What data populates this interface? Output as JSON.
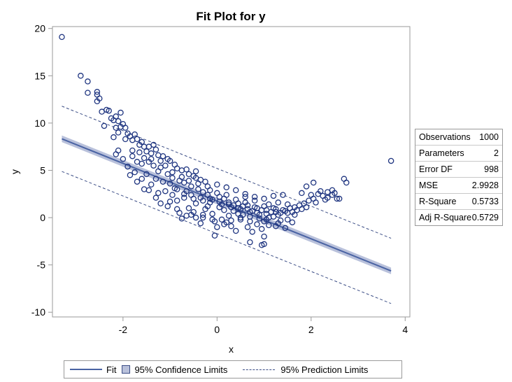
{
  "chart_data": {
    "type": "scatter",
    "title": "Fit Plot for y",
    "xlabel": "x",
    "ylabel": "y",
    "xlim": [
      -3.5,
      4.1
    ],
    "ylim": [
      -10.5,
      20.2
    ],
    "xticks": [
      "-2",
      "0",
      "2",
      "4"
    ],
    "yticks": [
      "-10",
      "-5",
      "0",
      "5",
      "10",
      "15",
      "20"
    ],
    "grid": false,
    "legend_position": "bottom",
    "fit": {
      "slope": -1.995,
      "intercept": 1.75,
      "x_range": [
        -3.3,
        3.7
      ]
    },
    "confidence_halfwidth": 0.35,
    "prediction_halfwidth": 3.45,
    "colors": {
      "points": "#1f3580",
      "fit": "#4a63a3",
      "band": "#b9c1db",
      "pred": "#3c4e86"
    },
    "legend": {
      "fit": "Fit",
      "confidence": "95% Confidence Limits",
      "prediction": "95% Prediction Limits"
    },
    "stats": [
      {
        "label": "Observations",
        "value": "1000"
      },
      {
        "label": "Parameters",
        "value": "2"
      },
      {
        "label": "Error DF",
        "value": "998"
      },
      {
        "label": "MSE",
        "value": "2.9928"
      },
      {
        "label": "R-Square",
        "value": "0.5733"
      },
      {
        "label": "Adj R-Square",
        "value": "0.5729"
      }
    ],
    "points": [
      [
        -3.3,
        19.1
      ],
      [
        -2.9,
        15.0
      ],
      [
        -2.75,
        14.4
      ],
      [
        -2.75,
        13.2
      ],
      [
        -2.55,
        13.3
      ],
      [
        -2.55,
        13.0
      ],
      [
        -2.5,
        12.6
      ],
      [
        -2.55,
        12.3
      ],
      [
        -2.45,
        11.2
      ],
      [
        -2.35,
        11.4
      ],
      [
        -2.3,
        11.3
      ],
      [
        -2.25,
        10.5
      ],
      [
        -2.15,
        10.7
      ],
      [
        -2.05,
        11.1
      ],
      [
        -2.2,
        10.3
      ],
      [
        -2.1,
        10.2
      ],
      [
        -2.0,
        9.9
      ],
      [
        -2.4,
        9.7
      ],
      [
        -2.15,
        9.5
      ],
      [
        -2.05,
        9.6
      ],
      [
        -1.95,
        9.5
      ],
      [
        -2.1,
        9.0
      ],
      [
        -1.9,
        8.9
      ],
      [
        -1.85,
        8.6
      ],
      [
        -1.75,
        8.8
      ],
      [
        -2.2,
        8.5
      ],
      [
        -1.8,
        8.2
      ],
      [
        -1.7,
        8.3
      ],
      [
        -1.6,
        8.0
      ],
      [
        -1.65,
        7.7
      ],
      [
        -1.55,
        7.5
      ],
      [
        -1.45,
        7.5
      ],
      [
        -1.35,
        7.7
      ],
      [
        -1.5,
        7.0
      ],
      [
        -1.4,
        6.8
      ],
      [
        -1.3,
        7.2
      ],
      [
        -1.25,
        6.6
      ],
      [
        -1.15,
        6.5
      ],
      [
        -1.05,
        6.2
      ],
      [
        -1.2,
        6.0
      ],
      [
        -1.0,
        6.0
      ],
      [
        -1.1,
        5.5
      ],
      [
        -0.9,
        5.6
      ],
      [
        -0.85,
        5.2
      ],
      [
        -0.75,
        5.0
      ],
      [
        -0.65,
        5.1
      ],
      [
        -0.6,
        4.6
      ],
      [
        -0.5,
        4.4
      ],
      [
        -0.45,
        4.2
      ],
      [
        -0.35,
        4.0
      ],
      [
        -0.25,
        3.8
      ],
      [
        -1.8,
        7.1
      ],
      [
        -1.95,
        8.3
      ],
      [
        -1.55,
        6.3
      ],
      [
        -1.45,
        5.9
      ],
      [
        -1.7,
        5.9
      ],
      [
        -1.35,
        5.5
      ],
      [
        -1.6,
        5.7
      ],
      [
        -1.25,
        4.9
      ],
      [
        -1.05,
        4.6
      ],
      [
        -0.95,
        4.2
      ],
      [
        -0.8,
        3.9
      ],
      [
        -0.7,
        3.7
      ],
      [
        -0.55,
        3.3
      ],
      [
        -1.0,
        3.6
      ],
      [
        -0.85,
        3.0
      ],
      [
        -0.65,
        2.8
      ],
      [
        -0.4,
        3.0
      ],
      [
        -0.3,
        2.7
      ],
      [
        -0.15,
        2.9
      ],
      [
        -1.15,
        3.8
      ],
      [
        -1.3,
        4.1
      ],
      [
        -1.5,
        4.6
      ],
      [
        -0.95,
        2.4
      ],
      [
        -0.7,
        2.1
      ],
      [
        -0.5,
        2.0
      ],
      [
        -0.3,
        1.8
      ],
      [
        -0.1,
        1.9
      ],
      [
        0.05,
        2.2
      ],
      [
        0.15,
        2.0
      ],
      [
        0.25,
        1.6
      ],
      [
        0.35,
        1.3
      ],
      [
        0.45,
        1.0
      ],
      [
        0.55,
        1.2
      ],
      [
        0.65,
        0.9
      ],
      [
        0.75,
        0.7
      ],
      [
        0.85,
        0.5
      ],
      [
        0.95,
        0.8
      ],
      [
        1.05,
        0.4
      ],
      [
        1.15,
        0.6
      ],
      [
        1.25,
        0.9
      ],
      [
        1.35,
        0.5
      ],
      [
        1.45,
        0.7
      ],
      [
        1.55,
        1.0
      ],
      [
        1.65,
        1.1
      ],
      [
        1.75,
        1.3
      ],
      [
        1.85,
        1.5
      ],
      [
        1.95,
        1.8
      ],
      [
        2.05,
        2.0
      ],
      [
        2.15,
        2.5
      ],
      [
        2.25,
        2.3
      ],
      [
        2.35,
        2.1
      ],
      [
        2.45,
        2.4
      ],
      [
        2.55,
        2.0
      ],
      [
        2.6,
        2.0
      ],
      [
        2.7,
        4.1
      ],
      [
        2.75,
        3.7
      ],
      [
        2.05,
        3.7
      ],
      [
        1.9,
        3.3
      ],
      [
        2.2,
        2.8
      ],
      [
        2.35,
        2.7
      ],
      [
        2.45,
        2.9
      ],
      [
        2.5,
        2.6
      ],
      [
        2.0,
        2.4
      ],
      [
        1.8,
        2.6
      ],
      [
        3.7,
        6.0
      ],
      [
        1.4,
        2.4
      ],
      [
        1.2,
        2.3
      ],
      [
        1.0,
        2.0
      ],
      [
        0.8,
        2.2
      ],
      [
        0.6,
        2.5
      ],
      [
        0.4,
        2.9
      ],
      [
        0.2,
        3.2
      ],
      [
        0.0,
        3.5
      ],
      [
        -0.2,
        3.3
      ],
      [
        -0.45,
        4.9
      ],
      [
        0.6,
        2.2
      ],
      [
        1.0,
        -0.4
      ],
      [
        0.5,
        -0.2
      ],
      [
        0.2,
        -0.5
      ],
      [
        -0.05,
        -0.4
      ],
      [
        -0.3,
        0.0
      ],
      [
        -0.55,
        0.3
      ],
      [
        -0.8,
        0.5
      ],
      [
        -1.05,
        1.2
      ],
      [
        -1.3,
        2.1
      ],
      [
        -1.55,
        3.0
      ],
      [
        0.0,
        -1.0
      ],
      [
        -0.05,
        -1.9
      ],
      [
        0.3,
        -0.9
      ],
      [
        0.65,
        -1.0
      ],
      [
        0.95,
        -1.2
      ],
      [
        1.1,
        -0.8
      ],
      [
        1.25,
        -0.9
      ],
      [
        1.45,
        -1.1
      ],
      [
        0.75,
        -1.5
      ],
      [
        1.0,
        -2.0
      ],
      [
        0.4,
        -1.4
      ],
      [
        0.7,
        -2.6
      ],
      [
        1.0,
        -2.8
      ],
      [
        0.95,
        -2.9
      ],
      [
        -0.75,
        -0.1
      ],
      [
        -0.35,
        -0.6
      ],
      [
        0.1,
        -0.2
      ],
      [
        0.25,
        0.2
      ],
      [
        0.45,
        0.4
      ],
      [
        0.7,
        0.1
      ],
      [
        0.9,
        -0.1
      ],
      [
        1.2,
        0.1
      ],
      [
        1.35,
        -0.3
      ],
      [
        1.5,
        -0.2
      ],
      [
        1.6,
        -0.5
      ],
      [
        1.65,
        0.3
      ],
      [
        0.15,
        0.8
      ],
      [
        -0.2,
        1.2
      ],
      [
        -0.45,
        1.5
      ],
      [
        -0.6,
        1.0
      ],
      [
        -0.85,
        1.8
      ],
      [
        -0.1,
        0.4
      ],
      [
        0.35,
        0.7
      ],
      [
        0.55,
        0.3
      ],
      [
        0.8,
        1.1
      ],
      [
        1.1,
        1.4
      ],
      [
        1.3,
        1.6
      ],
      [
        1.5,
        1.4
      ],
      [
        0.05,
        1.1
      ],
      [
        -0.25,
        0.9
      ],
      [
        -0.5,
        0.6
      ],
      [
        -0.7,
        2.5
      ],
      [
        -0.9,
        3.1
      ],
      [
        -1.1,
        2.8
      ],
      [
        -1.2,
        1.5
      ],
      [
        -1.4,
        3.5
      ],
      [
        -1.6,
        4.1
      ],
      [
        -1.75,
        4.8
      ],
      [
        -1.9,
        5.4
      ],
      [
        -2.0,
        6.2
      ],
      [
        -2.1,
        7.1
      ],
      [
        -2.15,
        6.7
      ],
      [
        -1.8,
        6.5
      ],
      [
        -1.65,
        6.9
      ],
      [
        -1.4,
        6.2
      ],
      [
        -1.2,
        5.3
      ],
      [
        -0.95,
        4.8
      ],
      [
        -0.75,
        4.3
      ],
      [
        -0.6,
        3.9
      ],
      [
        -0.4,
        3.6
      ],
      [
        -0.2,
        2.4
      ],
      [
        0.0,
        2.6
      ],
      [
        0.2,
        2.4
      ],
      [
        0.4,
        1.9
      ],
      [
        0.6,
        1.6
      ],
      [
        0.8,
        1.8
      ],
      [
        1.0,
        1.2
      ],
      [
        1.2,
        1.0
      ],
      [
        1.4,
        0.8
      ],
      [
        1.6,
        0.6
      ],
      [
        1.8,
        0.9
      ],
      [
        0.3,
        -0.3
      ],
      [
        0.5,
        0.0
      ],
      [
        0.7,
        -0.4
      ],
      [
        0.85,
        -0.7
      ],
      [
        1.05,
        -0.2
      ],
      [
        1.3,
        -0.6
      ],
      [
        0.15,
        -0.7
      ],
      [
        -0.1,
        -0.2
      ],
      [
        -0.3,
        0.3
      ],
      [
        -0.45,
        0.0
      ],
      [
        -0.65,
        0.2
      ],
      [
        -0.85,
        0.9
      ],
      [
        -1.0,
        1.7
      ],
      [
        -1.25,
        2.6
      ],
      [
        -1.45,
        2.9
      ],
      [
        -1.7,
        3.8
      ],
      [
        -1.85,
        4.5
      ],
      [
        -0.15,
        1.6
      ],
      [
        0.1,
        1.4
      ],
      [
        0.3,
        1.1
      ],
      [
        0.5,
        0.9
      ],
      [
        0.7,
        0.6
      ],
      [
        0.9,
        0.3
      ],
      [
        1.1,
        0.0
      ],
      [
        1.3,
        0.3
      ],
      [
        1.5,
        0.5
      ],
      [
        1.7,
        0.8
      ],
      [
        1.9,
        1.1
      ],
      [
        2.1,
        1.6
      ],
      [
        2.3,
        1.9
      ],
      [
        -0.55,
        2.4
      ],
      [
        -0.35,
        2.1
      ],
      [
        -0.15,
        2.0
      ],
      [
        0.05,
        1.7
      ],
      [
        0.25,
        1.4
      ],
      [
        0.45,
        1.5
      ],
      [
        0.65,
        1.3
      ],
      [
        0.85,
        1.0
      ],
      [
        1.05,
        0.8
      ],
      [
        1.25,
        0.6
      ]
    ]
  }
}
